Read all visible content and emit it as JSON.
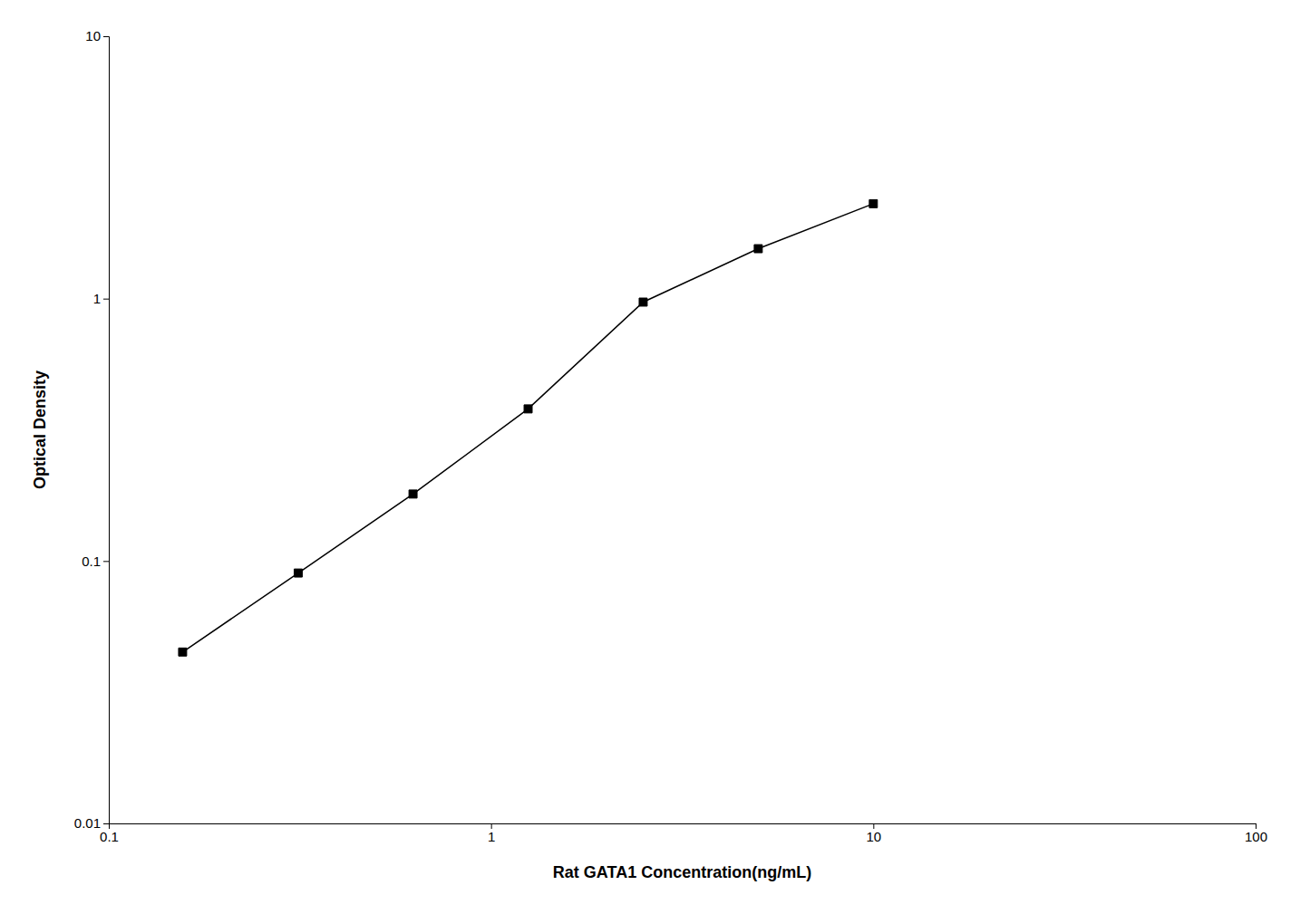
{
  "chart_data": {
    "type": "line",
    "xlabel": "Rat GATA1 Concentration(ng/mL)",
    "ylabel": "Optical Density",
    "x": [
      0.156,
      0.313,
      0.625,
      1.25,
      2.5,
      5.0,
      10.0
    ],
    "values": [
      0.045,
      0.09,
      0.18,
      0.38,
      0.97,
      1.55,
      2.3
    ],
    "xlim": [
      0.1,
      100
    ],
    "ylim": [
      0.01,
      10
    ],
    "xticks": [
      0.1,
      1,
      10,
      100
    ],
    "yticks": [
      0.01,
      0.1,
      1,
      10
    ],
    "log": true,
    "grid": false,
    "color": "#000000",
    "marker": "square"
  }
}
